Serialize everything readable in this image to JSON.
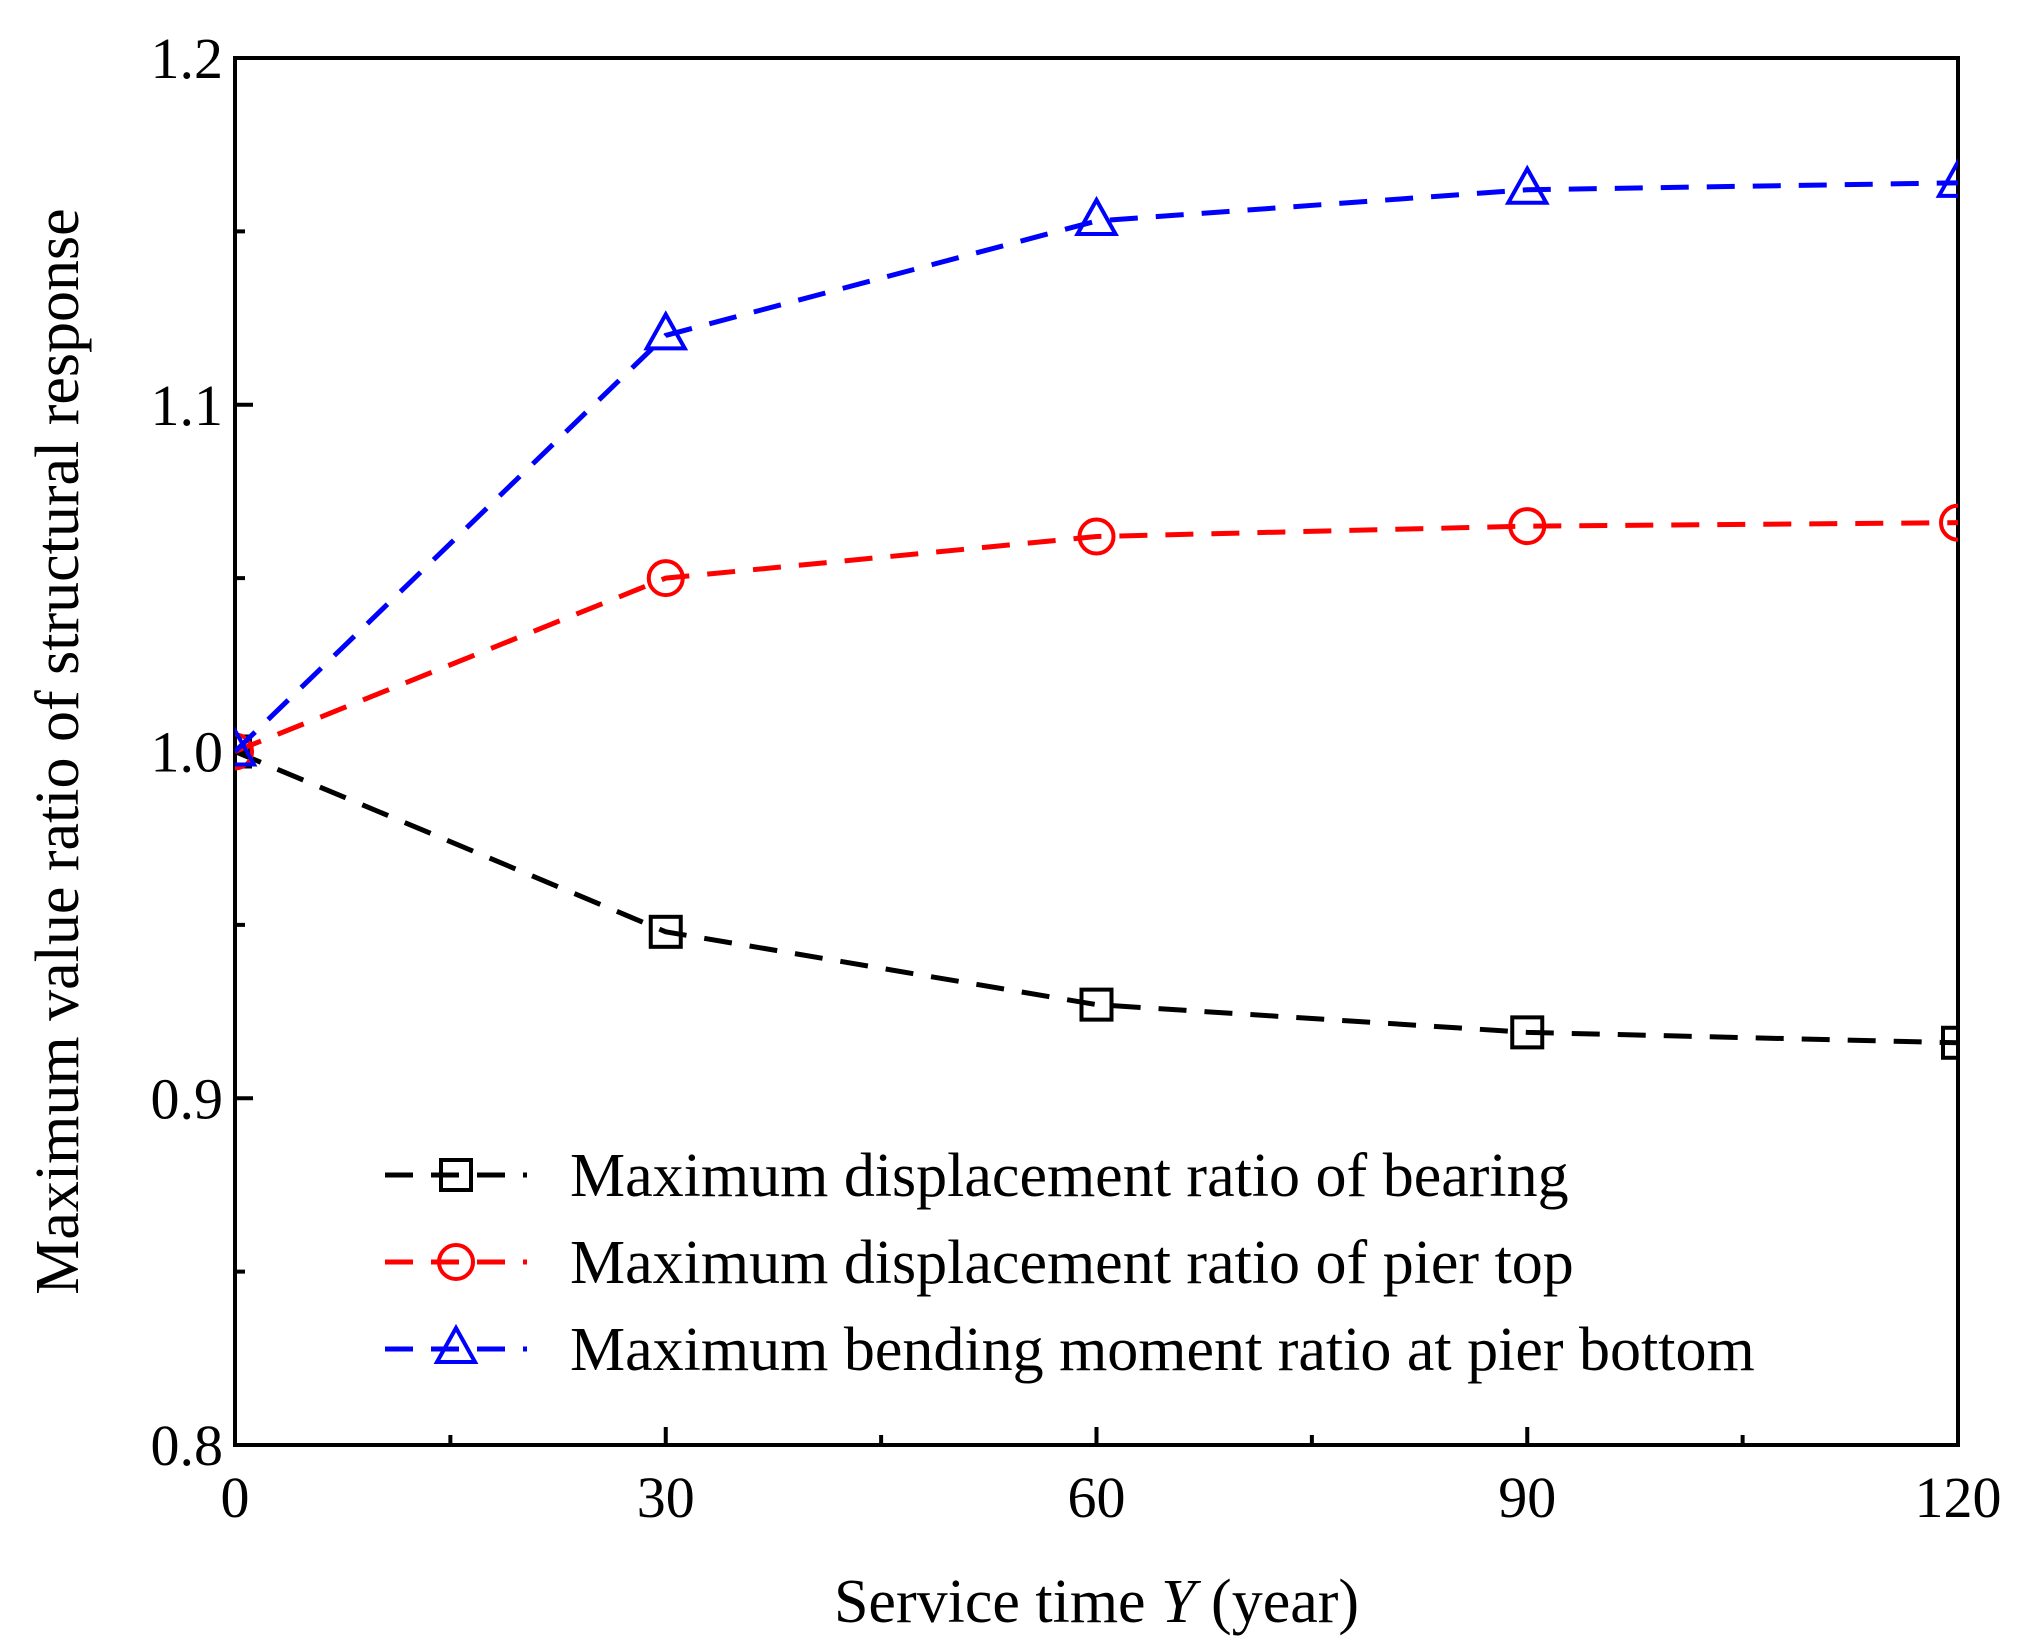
{
  "chart_data": {
    "type": "line",
    "title": "",
    "xlabel_prefix": "Service time ",
    "xlabel_var": "Y",
    "xlabel_suffix": " (year)",
    "ylabel": "Maximum value ratio of structural response",
    "xlim": [
      0,
      120
    ],
    "ylim": [
      0.8,
      1.2
    ],
    "x_ticks": [
      0,
      30,
      60,
      90,
      120
    ],
    "x_tick_labels": [
      "0",
      "30",
      "60",
      "90",
      "120"
    ],
    "y_ticks": [
      0.8,
      0.9,
      1.0,
      1.1,
      1.2
    ],
    "y_tick_labels": [
      "0.8",
      "0.9",
      "1.0",
      "1.1",
      "1.2"
    ],
    "legend_position": "bottom-right",
    "grid": false,
    "x": [
      0,
      30,
      60,
      90,
      120
    ],
    "series": [
      {
        "name": "Maximum displacement ratio of bearing",
        "marker": "square",
        "color": "#000000",
        "values": [
          1.0,
          0.948,
          0.927,
          0.919,
          0.916
        ]
      },
      {
        "name": "Maximum displacement ratio of pier top",
        "marker": "circle",
        "color": "#ff0000",
        "values": [
          1.0,
          1.05,
          1.062,
          1.065,
          1.066
        ]
      },
      {
        "name": "Maximum bending moment ratio at pier bottom",
        "marker": "triangle",
        "color": "#0000ff",
        "values": [
          1.0,
          1.12,
          1.153,
          1.162,
          1.164
        ]
      }
    ]
  }
}
